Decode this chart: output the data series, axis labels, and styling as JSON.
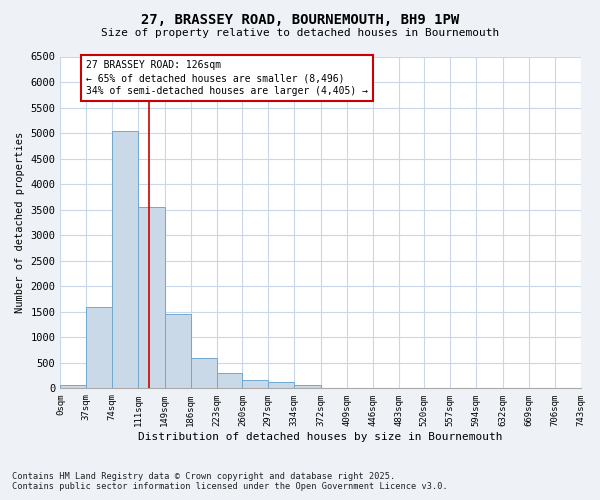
{
  "title_line1": "27, BRASSEY ROAD, BOURNEMOUTH, BH9 1PW",
  "title_line2": "Size of property relative to detached houses in Bournemouth",
  "xlabel": "Distribution of detached houses by size in Bournemouth",
  "ylabel": "Number of detached properties",
  "bin_edges": [
    0,
    37,
    74,
    111,
    149,
    186,
    223,
    260,
    297,
    334,
    372,
    409,
    446,
    483,
    520,
    557,
    594,
    632,
    669,
    706,
    743
  ],
  "bin_labels": [
    "0sqm",
    "37sqm",
    "74sqm",
    "111sqm",
    "149sqm",
    "186sqm",
    "223sqm",
    "260sqm",
    "297sqm",
    "334sqm",
    "372sqm",
    "409sqm",
    "446sqm",
    "483sqm",
    "520sqm",
    "557sqm",
    "594sqm",
    "632sqm",
    "669sqm",
    "706sqm",
    "743sqm"
  ],
  "bar_heights": [
    75,
    1600,
    5050,
    3550,
    1450,
    600,
    300,
    175,
    130,
    60,
    15,
    5,
    3,
    2,
    1,
    0,
    0,
    0,
    0,
    0
  ],
  "bar_color": "#c9d9e8",
  "bar_edgecolor": "#6fa8d0",
  "vline_x": 126,
  "vline_color": "#cc0000",
  "annotation_text": "27 BRASSEY ROAD: 126sqm\n← 65% of detached houses are smaller (8,496)\n34% of semi-detached houses are larger (4,405) →",
  "annotation_box_color": "#ffffff",
  "annotation_box_edgecolor": "#cc0000",
  "ylim": [
    0,
    6500
  ],
  "yticks": [
    0,
    500,
    1000,
    1500,
    2000,
    2500,
    3000,
    3500,
    4000,
    4500,
    5000,
    5500,
    6000,
    6500
  ],
  "footer_line1": "Contains HM Land Registry data © Crown copyright and database right 2025.",
  "footer_line2": "Contains public sector information licensed under the Open Government Licence v3.0.",
  "bg_color": "#eef2f7",
  "plot_bg_color": "#ffffff",
  "grid_color": "#c8d8e8"
}
